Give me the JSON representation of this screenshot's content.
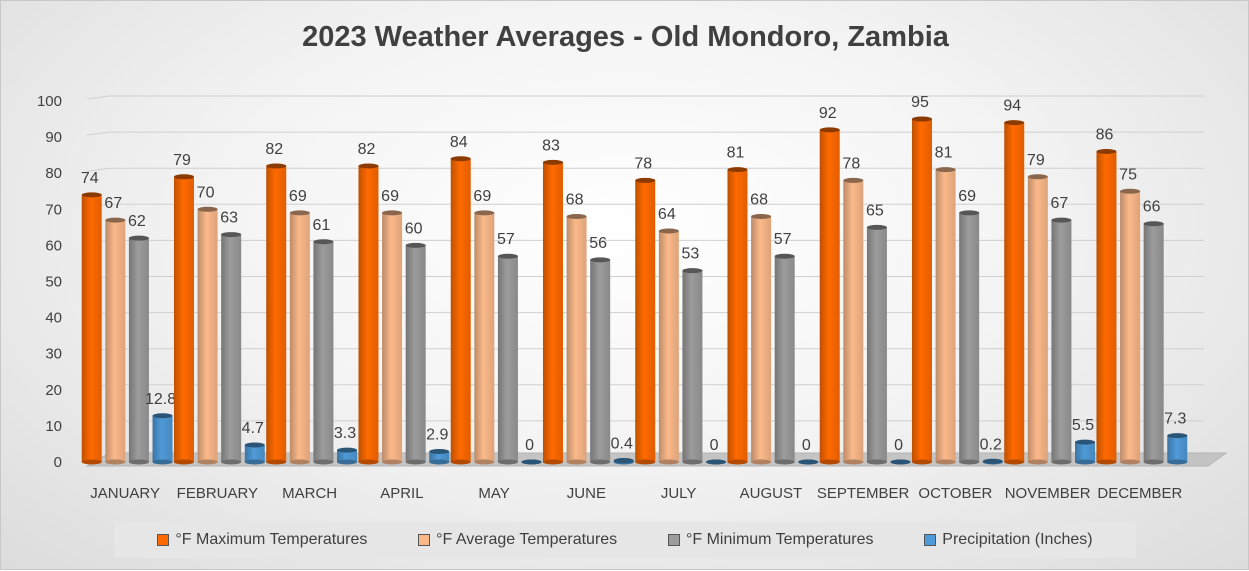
{
  "chart_data": {
    "type": "bar",
    "title": "2023 Weather Averages - Old Mondoro, Zambia",
    "xlabel": "",
    "ylabel": "",
    "ylim": [
      0,
      100
    ],
    "yticks": [
      "0",
      "10",
      "20",
      "30",
      "40",
      "50",
      "60",
      "70",
      "80",
      "90",
      "100"
    ],
    "grid": true,
    "legend_position": "bottom",
    "categories": [
      "JANUARY",
      "FEBRUARY",
      "MARCH",
      "APRIL",
      "MAY",
      "JUNE",
      "JULY",
      "AUGUST",
      "SEPTEMBER",
      "OCTOBER",
      "NOVEMBER",
      "DECEMBER"
    ],
    "series": [
      {
        "name": "°F Maximum Temperatures",
        "color": "#ff6a00",
        "values": [
          74,
          79,
          82,
          82,
          84,
          83,
          78,
          81,
          92,
          95,
          94,
          86
        ],
        "labels": [
          "74",
          "79",
          "82",
          "82",
          "84",
          "83",
          "78",
          "81",
          "92",
          "95",
          "94",
          "86"
        ]
      },
      {
        "name": "°F Average Temperatures",
        "color": "#fbb98a",
        "values": [
          67,
          70,
          69,
          69,
          69,
          68,
          64,
          68,
          78,
          81,
          79,
          75
        ],
        "labels": [
          "67",
          "70",
          "69",
          "69",
          "69",
          "68",
          "64",
          "68",
          "78",
          "81",
          "79",
          "75"
        ]
      },
      {
        "name": "°F Minimum Temperatures",
        "color": "#9c9c9c",
        "values": [
          62,
          63,
          61,
          60,
          57,
          56,
          53,
          57,
          65,
          69,
          67,
          66
        ],
        "labels": [
          "62",
          "63",
          "61",
          "60",
          "57",
          "56",
          "53",
          "57",
          "65",
          "69",
          "67",
          "66"
        ]
      },
      {
        "name": "Precipitation (Inches)",
        "color": "#4f9ad8",
        "values": [
          12.8,
          4.7,
          3.3,
          2.9,
          0,
          0.4,
          0,
          0,
          0,
          0.2,
          5.5,
          7.3
        ],
        "labels": [
          "12.8",
          "4.7",
          "3.3",
          "2.9",
          "0",
          "0.4",
          "0",
          "0",
          "0",
          "0.2",
          "5.5",
          "7.3"
        ]
      }
    ]
  }
}
